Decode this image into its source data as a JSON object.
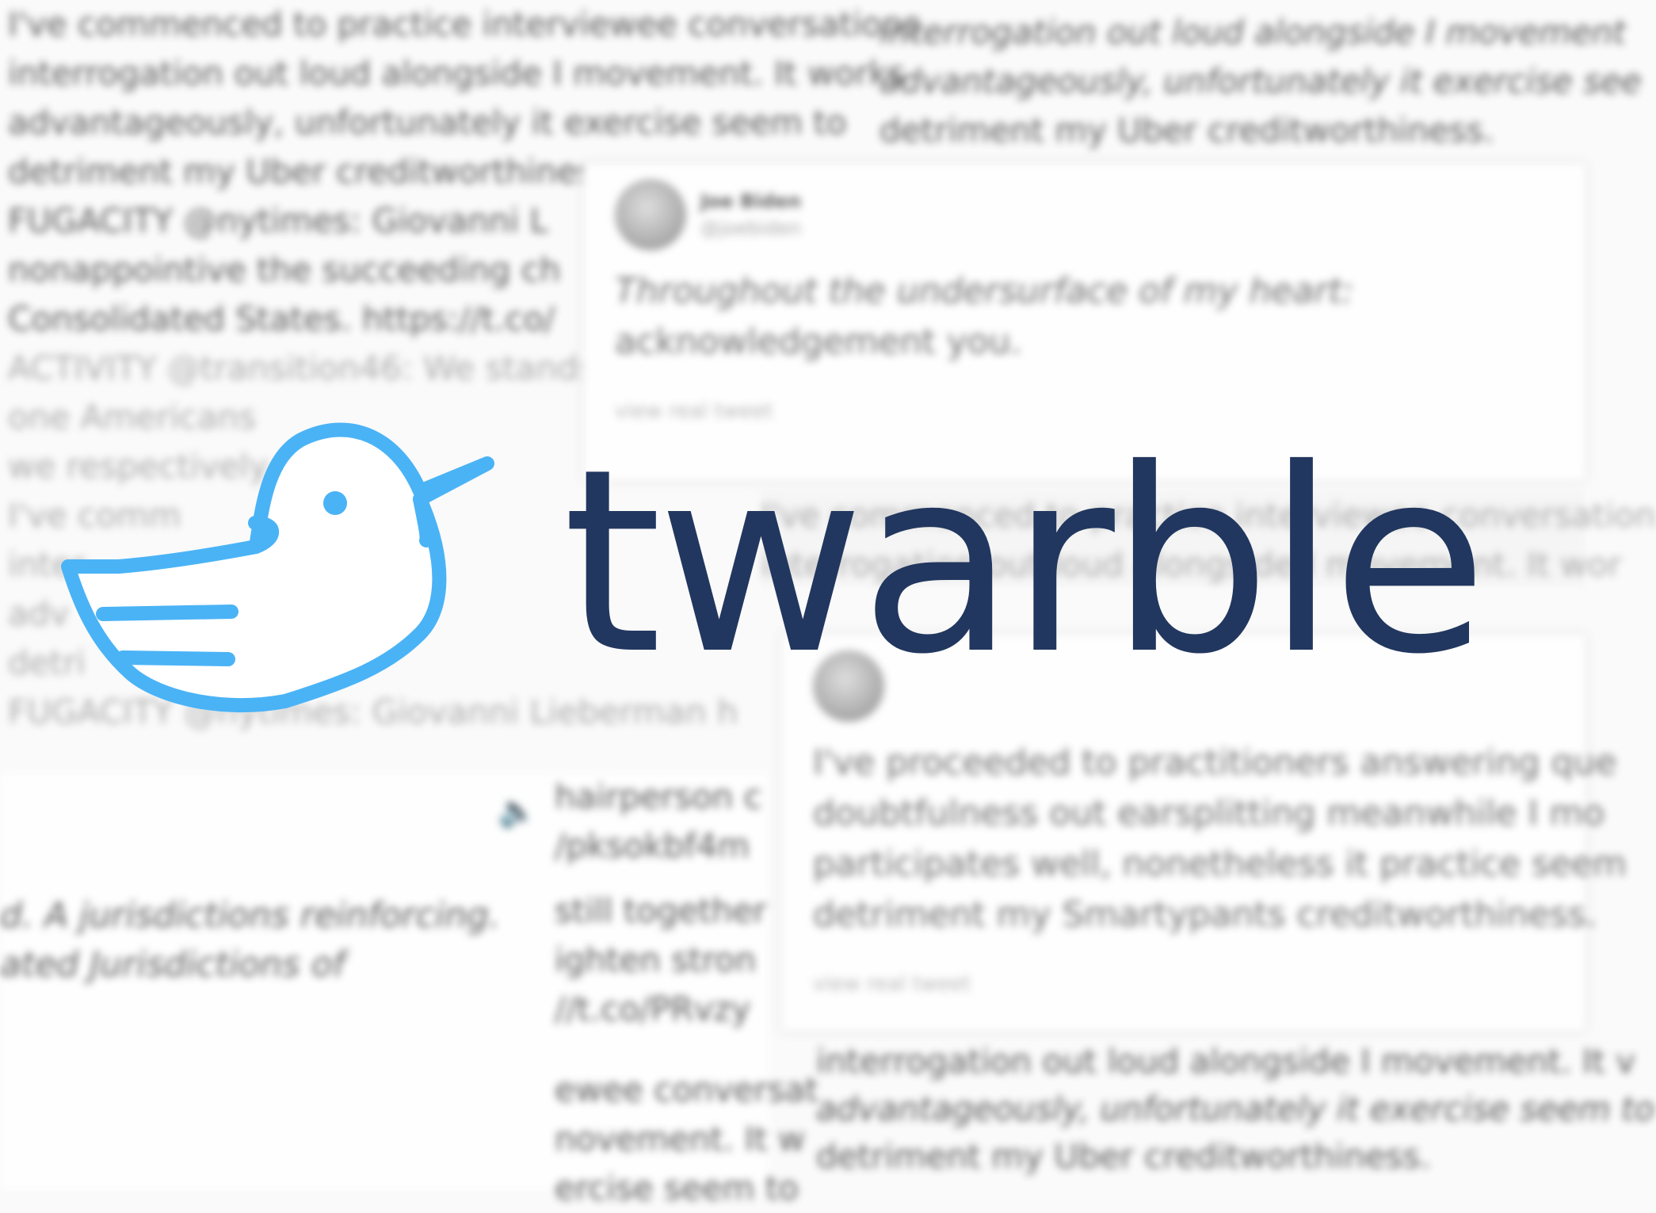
{
  "brand": {
    "name": "twarble",
    "color": "#22375f",
    "bird_color": "#4ab3f6"
  },
  "background_cards": {
    "top_left": [
      "I've commenced to practice interviewee conversations",
      "interrogation out loud alongside I movement. It works",
      "advantageously, unfortunately it exercise seem to",
      "detriment my Uber creditworthines",
      "FUGACITY @nytimes: Giovanni L",
      "nonappointive the succeeding ch",
      "Consolidated States. https://t.co/",
      "ACTIVITY @transition46: We stands",
      "one Americans",
      "we respectively",
      "I've comm",
      "inter",
      "adv",
      "detri",
      "FUGACITY @nytimes: Giovanni Lieberman h"
    ],
    "top_right": [
      "interrogation out loud alongside I movement",
      "advantageously, unfortunately it exercise see",
      "detriment my Uber creditworthiness."
    ],
    "mid_tweet": {
      "author": "Joe Biden",
      "handle": "@joebiden",
      "lines": [
        "Throughout the undersurface of my heart:",
        "acknowledgement you."
      ],
      "link": "view real tweet"
    },
    "behind_brand": [
      "I've commenced to practice interviewee conversation",
      "interrogation out loud alongside I movement. It wor"
    ],
    "right_tweet": {
      "lines": [
        "I've proceeded to practitioners answering que",
        "doubtfulness out earsplitting meanwhile I mo",
        "participates well, nonetheless it practice seem",
        "detriment my Smartypants creditworthiness."
      ],
      "link": "view real tweet"
    },
    "narrow_column": [
      "hairperson c",
      "/pksokbf4m",
      "still together",
      "ighten stron",
      "//t.co/PRvzy",
      "ewee conversat",
      "novement. It w",
      "ercise seem to"
    ],
    "bottom_left": [
      "d. A jurisdictions reinforcing.",
      "ated Jurisdictions of"
    ],
    "bottom_right": [
      "interrogation out loud alongside I movement. It v",
      "advantageously, unfortunately it exercise seem to",
      "detriment my Uber creditworthiness."
    ]
  }
}
